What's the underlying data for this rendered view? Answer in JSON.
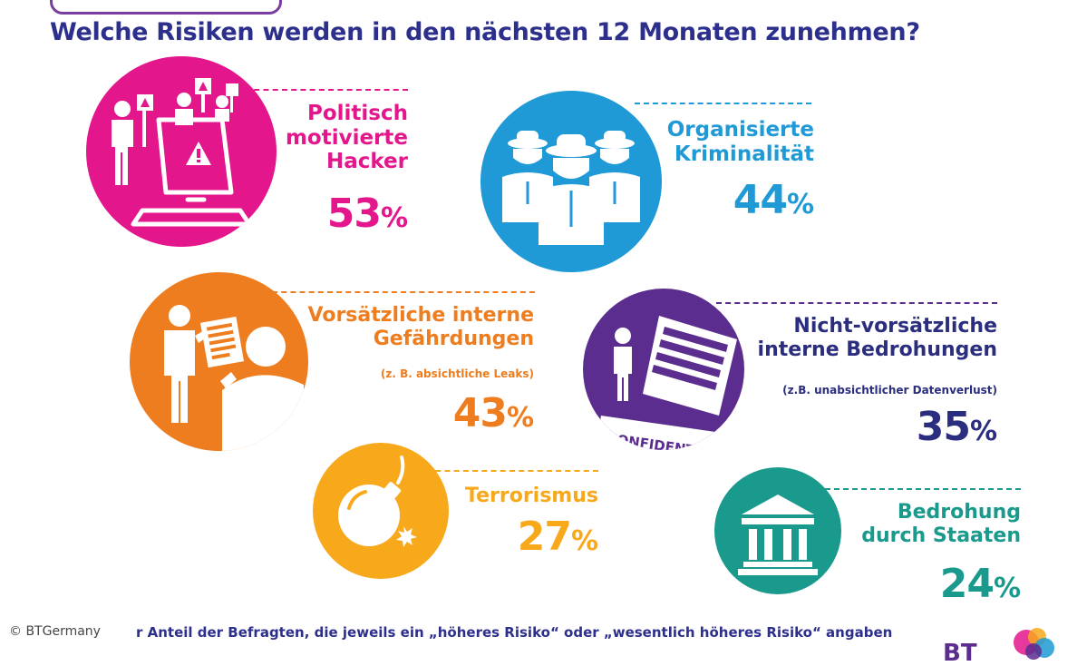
{
  "title": "Welche Risiken werden in den nächsten 12 Monaten zunehmen?",
  "risks": [
    {
      "label_lines": [
        "Politisch",
        "motivierte",
        "Hacker"
      ],
      "note": "",
      "value": 53,
      "color": "#e3168c"
    },
    {
      "label_lines": [
        "Organisierte",
        "Kriminalität"
      ],
      "note": "",
      "value": 44,
      "color": "#1f9ad6"
    },
    {
      "label_lines": [
        "Vorsätzliche interne",
        "Gefährdungen"
      ],
      "note": "(z. B. absichtliche Leaks)",
      "value": 43,
      "color": "#ee7d1f"
    },
    {
      "label_lines": [
        "Nicht-vorsätzliche",
        "interne Bedrohungen"
      ],
      "note": "(z.B. unabsichtlicher Datenverlust)",
      "value": 35,
      "color": "#5a2d8e"
    },
    {
      "label_lines": [
        "Terrorismus"
      ],
      "note": "",
      "value": 27,
      "color": "#f7a81b"
    },
    {
      "label_lines": [
        "Bedrohung",
        "durch Staaten"
      ],
      "note": "",
      "value": 24,
      "color": "#1a9a8c"
    }
  ],
  "pct_sign": "%",
  "confidential_text": "CONFIDENTI",
  "copyright": "© BTGermany",
  "footnote": "r Anteil der Befragten, die jeweils ein „höheres Risiko“ oder „wesentlich höheres Risiko“ angaben",
  "brand": "BT"
}
